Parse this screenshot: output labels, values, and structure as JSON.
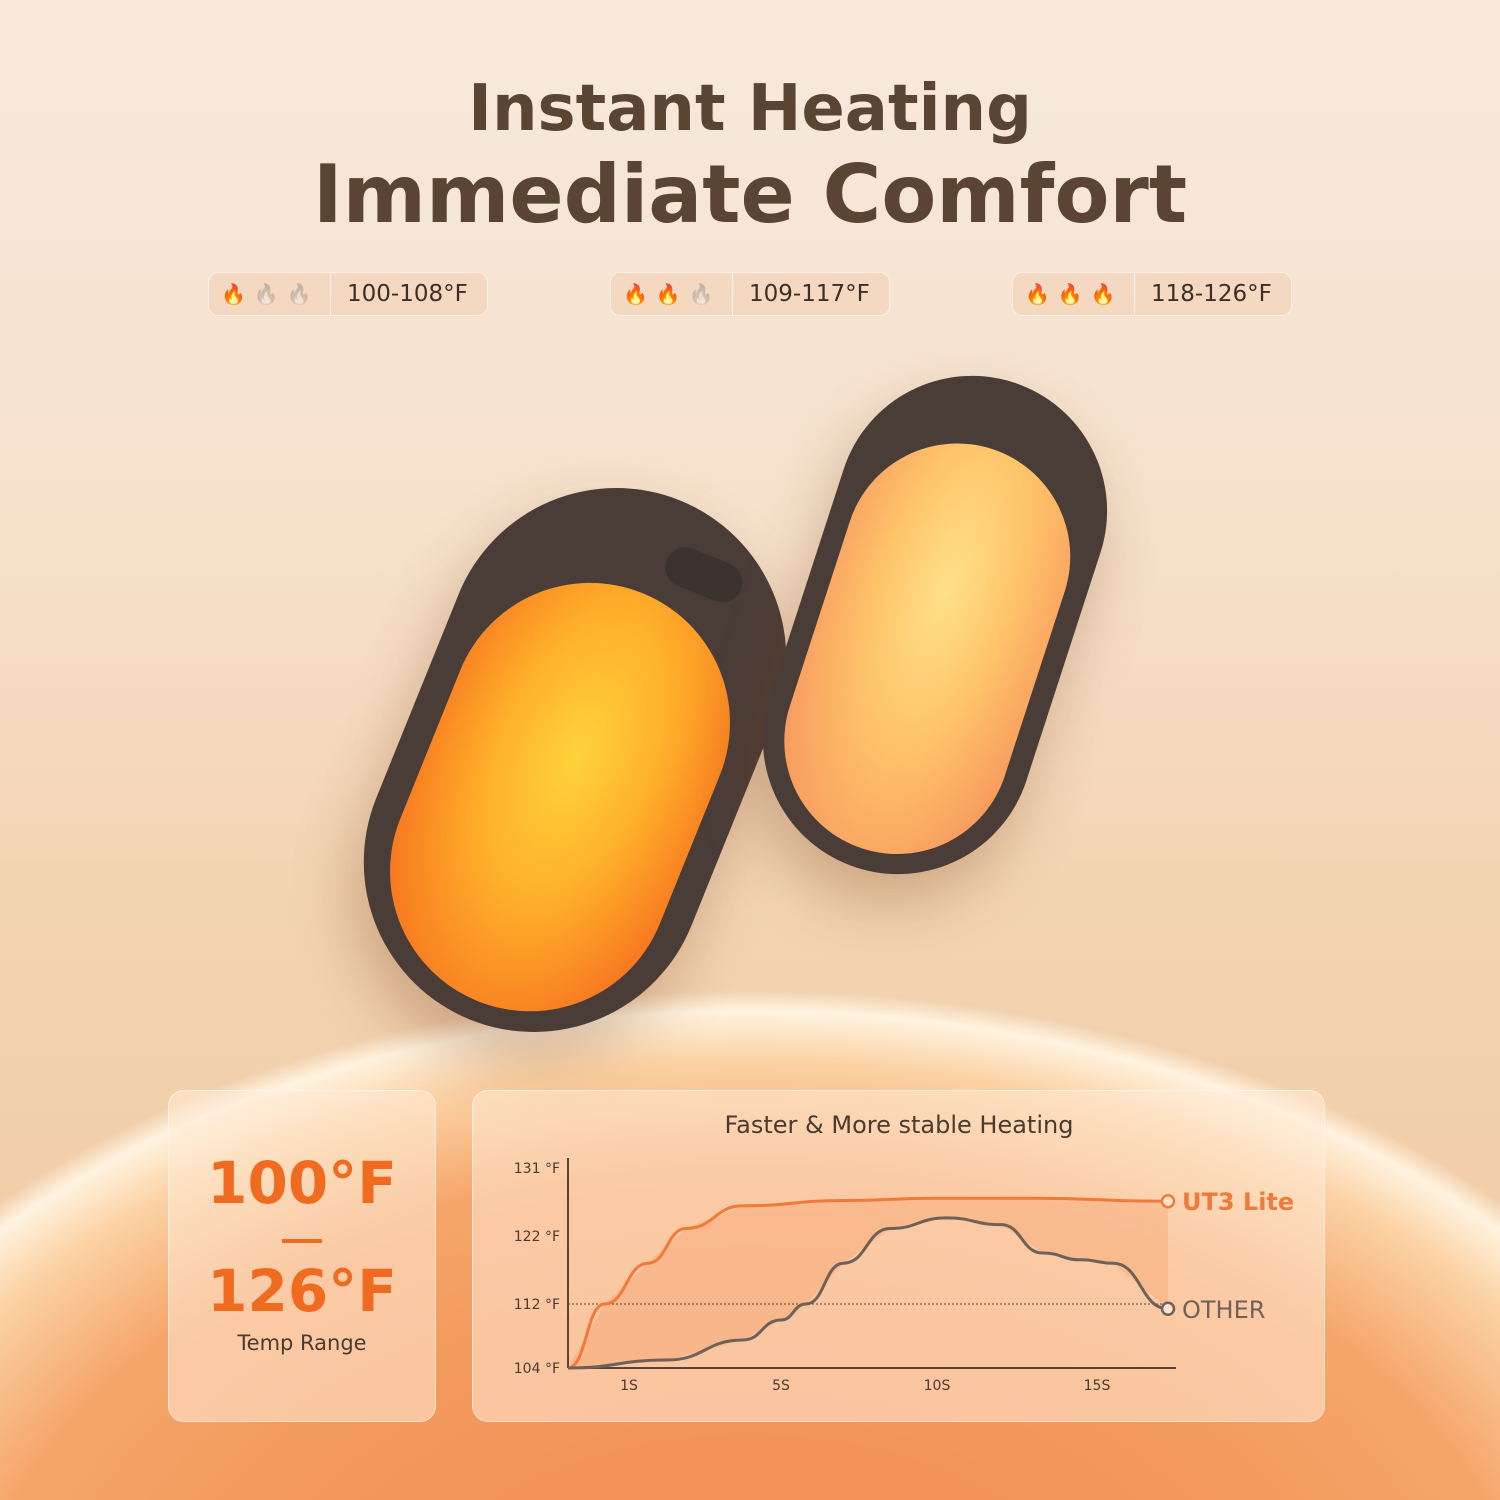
{
  "header": {
    "line1": "Instant Heating",
    "line2": "Immediate Comfort"
  },
  "levels": [
    {
      "flames_active": 1,
      "label": "100-108°F",
      "color": "#f79a1e"
    },
    {
      "flames_active": 2,
      "label": "109-117°F",
      "color": "#f06a2a"
    },
    {
      "flames_active": 3,
      "label": "118-126°F",
      "color": "#ee3b22"
    }
  ],
  "temp_card": {
    "low": "100°F",
    "high": "126°F",
    "caption": "Temp Range"
  },
  "chart_data": {
    "type": "line",
    "title": "Faster & More stable Heating",
    "x_ticks": [
      {
        "v": 1,
        "label": "1S"
      },
      {
        "v": 5,
        "label": "5S"
      },
      {
        "v": 10,
        "label": "10S"
      },
      {
        "v": 15,
        "label": "15S"
      }
    ],
    "y_ticks": [
      {
        "v": 104,
        "label": "104 °F"
      },
      {
        "v": 112,
        "label": "112 °F"
      },
      {
        "v": 122,
        "label": "122 °F"
      },
      {
        "v": 131,
        "label": "131 °F"
      }
    ],
    "reference_line": 112,
    "series": [
      {
        "name": "UT3 Lite",
        "color": "#f07a3a",
        "points": [
          [
            0,
            104
          ],
          [
            0.6,
            112
          ],
          [
            1.5,
            118
          ],
          [
            2.5,
            123
          ],
          [
            4,
            126
          ],
          [
            7,
            126.7
          ],
          [
            10,
            127
          ],
          [
            13,
            127
          ],
          [
            17.2,
            126.6
          ]
        ]
      },
      {
        "name": "OTHER",
        "color": "#6e615a",
        "points": [
          [
            0,
            104
          ],
          [
            2,
            105
          ],
          [
            4,
            107.5
          ],
          [
            5,
            110
          ],
          [
            5.8,
            112
          ],
          [
            7,
            118
          ],
          [
            8.5,
            123
          ],
          [
            10.3,
            124.4
          ],
          [
            12,
            123.5
          ],
          [
            13.3,
            119.5
          ],
          [
            14.5,
            118.5
          ],
          [
            15.5,
            118
          ],
          [
            17.2,
            111.4
          ]
        ]
      }
    ]
  }
}
